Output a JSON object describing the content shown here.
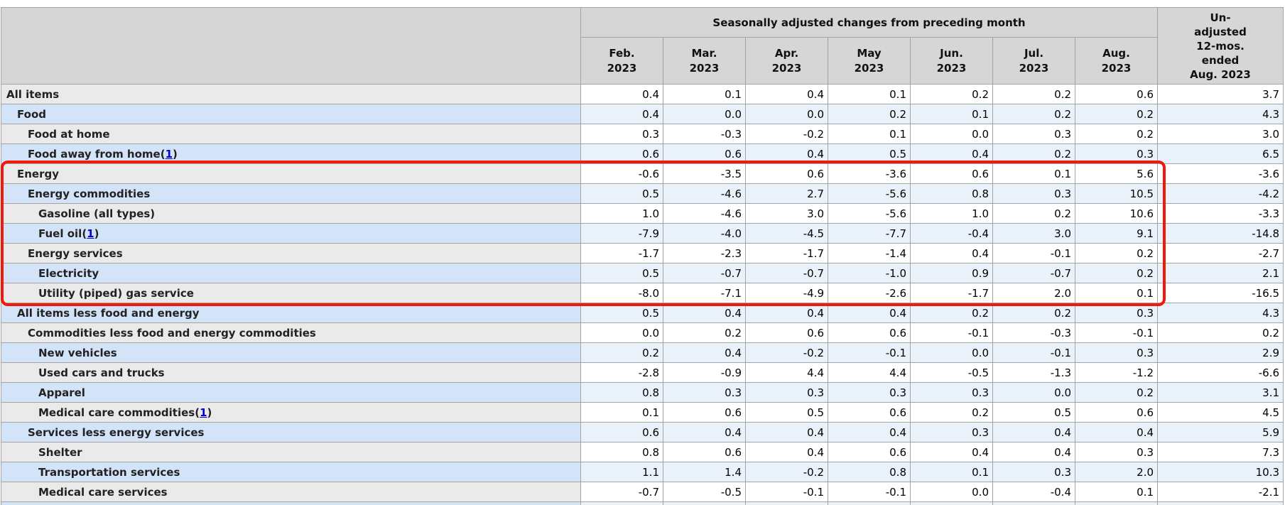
{
  "table": {
    "header": {
      "group_title": "Seasonally adjusted changes from preceding month",
      "unadjusted_lines": [
        "Un-",
        "adjusted",
        "12-mos.",
        "ended",
        "Aug. 2023"
      ],
      "months": [
        {
          "line1": "Feb.",
          "line2": "2023"
        },
        {
          "line1": "Mar.",
          "line2": "2023"
        },
        {
          "line1": "Apr.",
          "line2": "2023"
        },
        {
          "line1": "May",
          "line2": "2023"
        },
        {
          "line1": "Jun.",
          "line2": "2023"
        },
        {
          "line1": "Jul.",
          "line2": "2023"
        },
        {
          "line1": "Aug.",
          "line2": "2023"
        }
      ]
    },
    "footnote_open": "(",
    "footnote_close": ")",
    "rows": [
      {
        "label": "All items",
        "indent": 0,
        "footnote": null,
        "values": [
          "0.4",
          "0.1",
          "0.4",
          "0.1",
          "0.2",
          "0.2",
          "0.6"
        ],
        "unadjusted": "3.7",
        "highlighted": false
      },
      {
        "label": "Food",
        "indent": 1,
        "footnote": null,
        "values": [
          "0.4",
          "0.0",
          "0.0",
          "0.2",
          "0.1",
          "0.2",
          "0.2"
        ],
        "unadjusted": "4.3",
        "highlighted": false
      },
      {
        "label": "Food at home",
        "indent": 2,
        "footnote": null,
        "values": [
          "0.3",
          "-0.3",
          "-0.2",
          "0.1",
          "0.0",
          "0.3",
          "0.2"
        ],
        "unadjusted": "3.0",
        "highlighted": false
      },
      {
        "label": "Food away from home",
        "indent": 2,
        "footnote": "1",
        "values": [
          "0.6",
          "0.6",
          "0.4",
          "0.5",
          "0.4",
          "0.2",
          "0.3"
        ],
        "unadjusted": "6.5",
        "highlighted": false
      },
      {
        "label": "Energy",
        "indent": 1,
        "footnote": null,
        "values": [
          "-0.6",
          "-3.5",
          "0.6",
          "-3.6",
          "0.6",
          "0.1",
          "5.6"
        ],
        "unadjusted": "-3.6",
        "highlighted": true
      },
      {
        "label": "Energy commodities",
        "indent": 2,
        "footnote": null,
        "values": [
          "0.5",
          "-4.6",
          "2.7",
          "-5.6",
          "0.8",
          "0.3",
          "10.5"
        ],
        "unadjusted": "-4.2",
        "highlighted": true
      },
      {
        "label": "Gasoline (all types)",
        "indent": 3,
        "footnote": null,
        "values": [
          "1.0",
          "-4.6",
          "3.0",
          "-5.6",
          "1.0",
          "0.2",
          "10.6"
        ],
        "unadjusted": "-3.3",
        "highlighted": true
      },
      {
        "label": "Fuel oil",
        "indent": 3,
        "footnote": "1",
        "values": [
          "-7.9",
          "-4.0",
          "-4.5",
          "-7.7",
          "-0.4",
          "3.0",
          "9.1"
        ],
        "unadjusted": "-14.8",
        "highlighted": true
      },
      {
        "label": "Energy services",
        "indent": 2,
        "footnote": null,
        "values": [
          "-1.7",
          "-2.3",
          "-1.7",
          "-1.4",
          "0.4",
          "-0.1",
          "0.2"
        ],
        "unadjusted": "-2.7",
        "highlighted": true
      },
      {
        "label": "Electricity",
        "indent": 3,
        "footnote": null,
        "values": [
          "0.5",
          "-0.7",
          "-0.7",
          "-1.0",
          "0.9",
          "-0.7",
          "0.2"
        ],
        "unadjusted": "2.1",
        "highlighted": true
      },
      {
        "label": "Utility (piped) gas service",
        "indent": 3,
        "footnote": null,
        "values": [
          "-8.0",
          "-7.1",
          "-4.9",
          "-2.6",
          "-1.7",
          "2.0",
          "0.1"
        ],
        "unadjusted": "-16.5",
        "highlighted": true
      },
      {
        "label": "All items less food and energy",
        "indent": 1,
        "footnote": null,
        "values": [
          "0.5",
          "0.4",
          "0.4",
          "0.4",
          "0.2",
          "0.2",
          "0.3"
        ],
        "unadjusted": "4.3",
        "highlighted": false
      },
      {
        "label": "Commodities less food and energy commodities",
        "indent": 2,
        "footnote": null,
        "values": [
          "0.0",
          "0.2",
          "0.6",
          "0.6",
          "-0.1",
          "-0.3",
          "-0.1"
        ],
        "unadjusted": "0.2",
        "highlighted": false
      },
      {
        "label": "New vehicles",
        "indent": 3,
        "footnote": null,
        "values": [
          "0.2",
          "0.4",
          "-0.2",
          "-0.1",
          "0.0",
          "-0.1",
          "0.3"
        ],
        "unadjusted": "2.9",
        "highlighted": false
      },
      {
        "label": "Used cars and trucks",
        "indent": 3,
        "footnote": null,
        "values": [
          "-2.8",
          "-0.9",
          "4.4",
          "4.4",
          "-0.5",
          "-1.3",
          "-1.2"
        ],
        "unadjusted": "-6.6",
        "highlighted": false
      },
      {
        "label": "Apparel",
        "indent": 3,
        "footnote": null,
        "values": [
          "0.8",
          "0.3",
          "0.3",
          "0.3",
          "0.3",
          "0.0",
          "0.2"
        ],
        "unadjusted": "3.1",
        "highlighted": false
      },
      {
        "label": "Medical care commodities",
        "indent": 3,
        "footnote": "1",
        "values": [
          "0.1",
          "0.6",
          "0.5",
          "0.6",
          "0.2",
          "0.5",
          "0.6"
        ],
        "unadjusted": "4.5",
        "highlighted": false
      },
      {
        "label": "Services less energy services",
        "indent": 2,
        "footnote": null,
        "values": [
          "0.6",
          "0.4",
          "0.4",
          "0.4",
          "0.3",
          "0.4",
          "0.4"
        ],
        "unadjusted": "5.9",
        "highlighted": false
      },
      {
        "label": "Shelter",
        "indent": 3,
        "footnote": null,
        "values": [
          "0.8",
          "0.6",
          "0.4",
          "0.6",
          "0.4",
          "0.4",
          "0.3"
        ],
        "unadjusted": "7.3",
        "highlighted": false
      },
      {
        "label": "Transportation services",
        "indent": 3,
        "footnote": null,
        "values": [
          "1.1",
          "1.4",
          "-0.2",
          "0.8",
          "0.1",
          "0.3",
          "2.0"
        ],
        "unadjusted": "10.3",
        "highlighted": false
      },
      {
        "label": "Medical care services",
        "indent": 3,
        "footnote": null,
        "values": [
          "-0.7",
          "-0.5",
          "-0.1",
          "-0.1",
          "0.0",
          "-0.4",
          "0.1"
        ],
        "unadjusted": "-2.1",
        "highlighted": false
      }
    ],
    "ui_colors": {
      "header_bg": "#d6d6d6",
      "row_label_gray": "#eaeaea",
      "row_label_blue": "#d3e3f8",
      "data_cell_white": "#ffffff",
      "data_cell_blue": "#e9f1fb",
      "border": "#a3a3a3",
      "highlight_box_red": "#f1180c",
      "footnote_link_blue": "#0000cc"
    }
  }
}
